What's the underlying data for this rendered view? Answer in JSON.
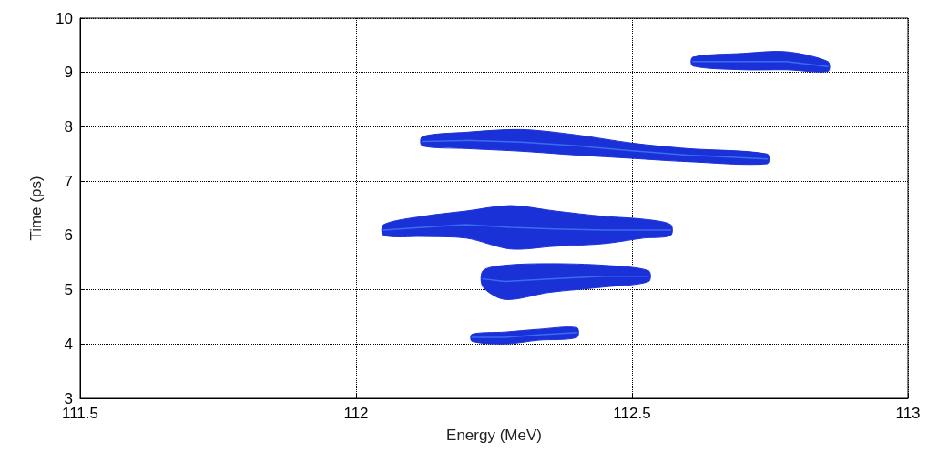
{
  "chart_data": {
    "type": "line",
    "xlabel": "Energy (MeV)",
    "ylabel": "Time (ps)",
    "xlim": [
      111.5,
      113
    ],
    "xticks": [
      111.5,
      112,
      112.5,
      113
    ],
    "ylim": [
      3,
      10
    ],
    "yticks": [
      3,
      4,
      5,
      6,
      7,
      8,
      9,
      10
    ],
    "grid": true,
    "series": [
      {
        "color": "#3a6cf0",
        "x": [
          112.21,
          112.27,
          112.33,
          112.4
        ],
        "values": [
          4.12,
          4.12,
          4.17,
          4.21
        ],
        "lower": [
          4.05,
          4.0,
          4.07,
          4.12
        ],
        "upper": [
          4.18,
          4.22,
          4.27,
          4.3
        ]
      },
      {
        "color": "#3a6cf0",
        "x": [
          112.23,
          112.27,
          112.35,
          112.45,
          112.53
        ],
        "values": [
          5.2,
          5.15,
          5.2,
          5.25,
          5.25
        ],
        "lower": [
          5.05,
          4.82,
          4.95,
          5.05,
          5.15
        ],
        "upper": [
          5.35,
          5.45,
          5.48,
          5.45,
          5.35
        ]
      },
      {
        "color": "#3a6cf0",
        "x": [
          112.05,
          112.12,
          112.2,
          112.28,
          112.36,
          112.45,
          112.52,
          112.57
        ],
        "values": [
          6.1,
          6.15,
          6.2,
          6.15,
          6.12,
          6.1,
          6.1,
          6.1
        ],
        "lower": [
          6.0,
          5.98,
          5.95,
          5.75,
          5.8,
          5.85,
          5.95,
          6.0
        ],
        "upper": [
          6.2,
          6.35,
          6.45,
          6.55,
          6.45,
          6.35,
          6.3,
          6.2
        ]
      },
      {
        "color": "#3a6cf0",
        "x": [
          112.12,
          112.2,
          112.3,
          112.4,
          112.5,
          112.6,
          112.745
        ],
        "values": [
          7.73,
          7.75,
          7.72,
          7.65,
          7.56,
          7.48,
          7.41
        ],
        "lower": [
          7.65,
          7.6,
          7.55,
          7.48,
          7.42,
          7.36,
          7.32
        ],
        "upper": [
          7.82,
          7.9,
          7.95,
          7.85,
          7.7,
          7.6,
          7.5
        ]
      },
      {
        "color": "#3a6cf0",
        "x": [
          112.61,
          112.7,
          112.78,
          112.855
        ],
        "values": [
          9.2,
          9.2,
          9.2,
          9.11
        ],
        "lower": [
          9.12,
          9.05,
          9.05,
          9.02
        ],
        "upper": [
          9.28,
          9.35,
          9.38,
          9.2
        ]
      }
    ]
  }
}
